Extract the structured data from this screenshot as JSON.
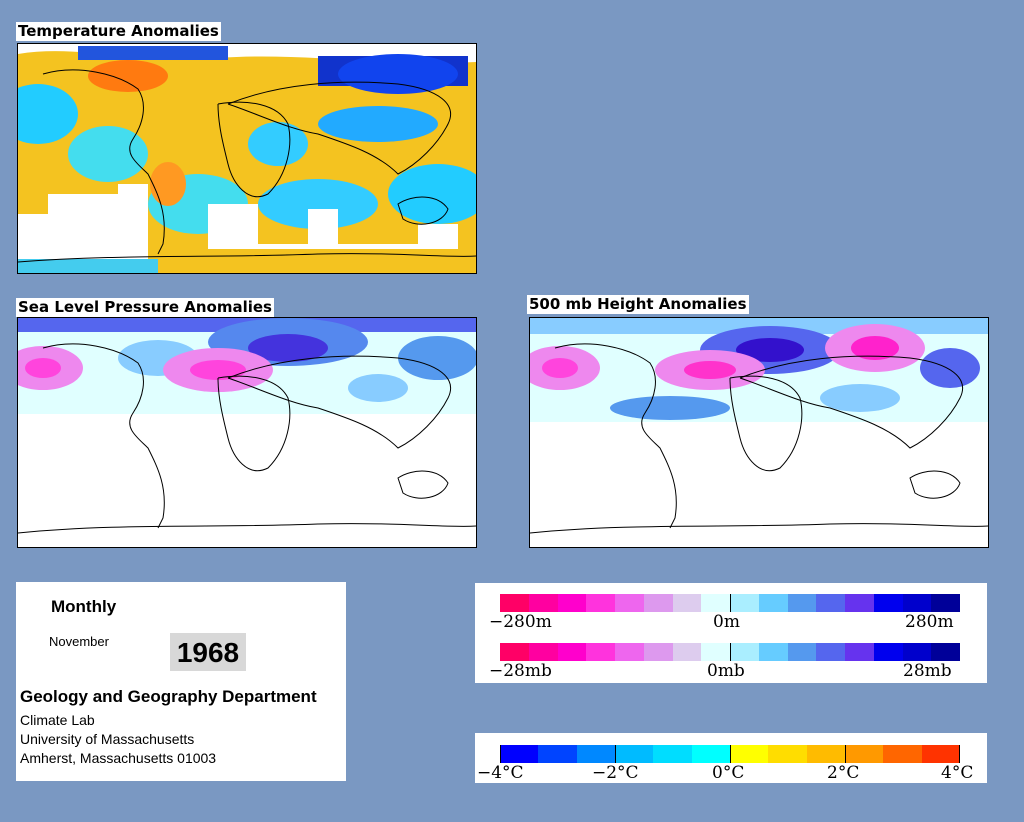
{
  "panels": {
    "temperature": {
      "title": "Temperature Anomalies"
    },
    "slp": {
      "title": "Sea Level Pressure Anomalies"
    },
    "height500": {
      "title": "500 mb Height Anomalies"
    }
  },
  "info": {
    "frequency": "Monthly",
    "month": "November",
    "year": "1968",
    "department": "Geology and Geography Department",
    "lab": "Climate Lab",
    "university": "University of Massachusetts",
    "address": "Amherst, Massachusetts 01003"
  },
  "legends": {
    "height": {
      "min_label": "−280m",
      "mid_label": "0m",
      "max_label": "280m"
    },
    "pressure": {
      "min_label": "−28mb",
      "mid_label": "0mb",
      "max_label": "28mb"
    },
    "temperature": {
      "labels": [
        "−4°C",
        "−2°C",
        "0°C",
        "2°C",
        "4°C"
      ]
    }
  },
  "colors": {
    "anomaly_scale": [
      "#ff0066",
      "#ff00a0",
      "#ff00cc",
      "#ff33dd",
      "#ee66ee",
      "#dd99ee",
      "#ddccee",
      "#e0ffff",
      "#aaeeff",
      "#66ccff",
      "#5599ee",
      "#5566ee",
      "#6633ee",
      "#0000ee",
      "#0000cc",
      "#000099"
    ],
    "temperature_scale": [
      "#0000ff",
      "#0044ff",
      "#0088ff",
      "#00bbff",
      "#00ddff",
      "#00ffff",
      "#ffff00",
      "#ffdd00",
      "#ffbb00",
      "#ff9900",
      "#ff6600",
      "#ff3300"
    ]
  }
}
